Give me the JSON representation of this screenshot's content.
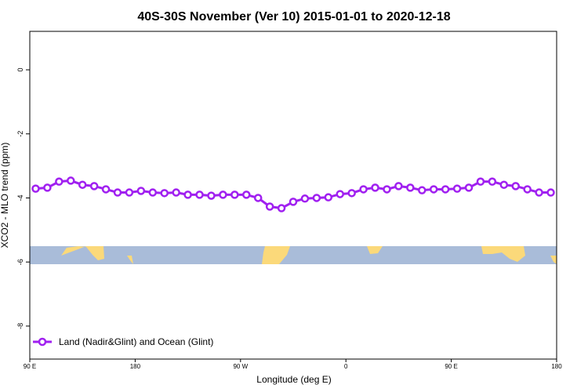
{
  "chart_data": {
    "type": "line",
    "title": "40S-30S November (Ver 10)   2015-01-01 to 2020-12-18",
    "x_label": "Longitude (deg E)",
    "y_label": "XCO2 - MLO trend (ppm)",
    "x": [
      95,
      105,
      115,
      125,
      135,
      145,
      155,
      165,
      175,
      185,
      195,
      205,
      215,
      225,
      235,
      245,
      255,
      265,
      275,
      285,
      295,
      305,
      315,
      325,
      335,
      345,
      355,
      365,
      375,
      385,
      395,
      405,
      415,
      425,
      435,
      445,
      455,
      465,
      475,
      485,
      495,
      505,
      515,
      525,
      535
    ],
    "series": [
      {
        "name": "Land (Nadir&Glint) and Ocean (Glint)",
        "color": "#a020f0",
        "values": [
          -3.71,
          -3.68,
          -3.49,
          -3.46,
          -3.59,
          -3.63,
          -3.73,
          -3.83,
          -3.83,
          -3.78,
          -3.83,
          -3.85,
          -3.83,
          -3.9,
          -3.9,
          -3.93,
          -3.9,
          -3.9,
          -3.9,
          -4.0,
          -4.27,
          -4.32,
          -4.12,
          -4.02,
          -4.0,
          -3.98,
          -3.88,
          -3.85,
          -3.73,
          -3.68,
          -3.73,
          -3.63,
          -3.68,
          -3.76,
          -3.73,
          -3.73,
          -3.71,
          -3.68,
          -3.49,
          -3.49,
          -3.59,
          -3.63,
          -3.73,
          -3.83,
          -3.83
        ]
      }
    ],
    "xlim": [
      90,
      540
    ],
    "xticks": [
      {
        "value": 90,
        "label": "90 E"
      },
      {
        "value": 180,
        "label": "180"
      },
      {
        "value": 270,
        "label": "90 W"
      },
      {
        "value": 360,
        "label": "0"
      },
      {
        "value": 450,
        "label": "90 E"
      },
      {
        "value": 540,
        "label": "180"
      }
    ],
    "ylim": [
      -9.03,
      1.2
    ],
    "yticks": [
      0,
      -2,
      -4,
      -6,
      -8
    ],
    "legend": "bottom-left"
  }
}
